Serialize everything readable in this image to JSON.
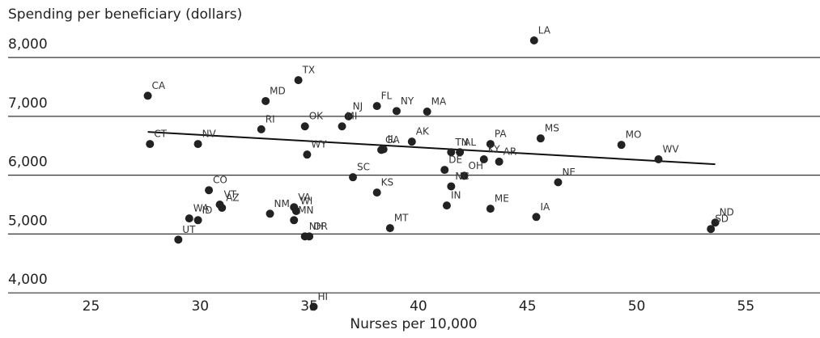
{
  "chart_data": {
    "type": "scatter",
    "y_label": "Spending per beneficiary (dollars)",
    "x_label": "Nurses per 10,000",
    "color": "#222222",
    "xlim": [
      21.2,
      58.4
    ],
    "ylim": [
      3700,
      8400
    ],
    "xticks": [
      25,
      30,
      35,
      40,
      45,
      50,
      55
    ],
    "yticks": [
      {
        "value": 4000,
        "label": "4,000"
      },
      {
        "value": 5000,
        "label": "5,000"
      },
      {
        "value": 6000,
        "label": "6,000"
      },
      {
        "value": 7000,
        "label": "7,000"
      },
      {
        "value": 8000,
        "label": "8,000"
      }
    ],
    "grid": true,
    "labels": [
      "CA",
      "CT",
      "NV",
      "MD",
      "TX",
      "RI",
      "OK",
      "NJ",
      "MI",
      "FL",
      "NY",
      "MA",
      "AK",
      "GA",
      "IL",
      "WY",
      "TN",
      "AL",
      "PA",
      "KY",
      "AR",
      "MS",
      "MO",
      "WV",
      "DE",
      "OH",
      "NC",
      "NE",
      "SC",
      "KS",
      "IN",
      "ME",
      "IA",
      "MT",
      "CO",
      "VT",
      "AZ",
      "WA",
      "ID",
      "UT",
      "NM",
      "VA",
      "WI",
      "MN",
      "NH",
      "OR",
      "LA",
      "ND",
      "SD",
      "HI"
    ],
    "x": [
      27.6,
      27.7,
      29.9,
      33.0,
      34.5,
      32.8,
      34.8,
      36.8,
      36.5,
      38.1,
      39.0,
      40.4,
      39.7,
      38.3,
      38.4,
      34.9,
      41.5,
      41.9,
      43.3,
      43.0,
      43.7,
      45.6,
      49.3,
      51.0,
      41.2,
      42.1,
      41.5,
      46.4,
      37.0,
      38.1,
      41.3,
      43.3,
      45.4,
      38.7,
      30.4,
      30.9,
      31.0,
      29.5,
      29.9,
      29.0,
      33.2,
      34.3,
      34.4,
      34.3,
      34.8,
      35.0,
      45.3,
      53.6,
      53.4,
      35.2
    ],
    "values": [
      7350,
      6530,
      6530,
      7260,
      7615,
      6780,
      6830,
      7000,
      6830,
      7175,
      7090,
      7080,
      6570,
      6430,
      6440,
      6350,
      6390,
      6390,
      6530,
      6270,
      6230,
      6625,
      6515,
      6270,
      6090,
      5990,
      5810,
      5880,
      5965,
      5705,
      5485,
      5430,
      5290,
      5100,
      5745,
      5500,
      5445,
      5265,
      5235,
      4905,
      5345,
      5455,
      5390,
      5235,
      4960,
      4960,
      8290,
      5195,
      5085,
      3765
    ],
    "trendline": {
      "x": [
        27.6,
        53.6
      ],
      "values": [
        6735,
        6185
      ]
    }
  }
}
